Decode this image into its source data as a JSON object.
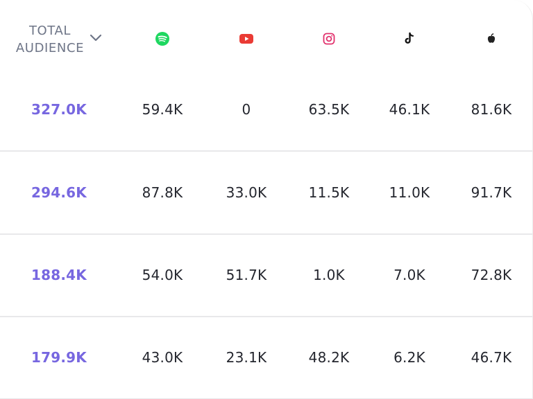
{
  "header": {
    "sort_label": "TOTAL\nAUDIENCE",
    "platforms": [
      {
        "icon": "spotify-icon",
        "color": "#1ed760"
      },
      {
        "icon": "youtube-icon",
        "color": "#ea3b35"
      },
      {
        "icon": "instagram-icon",
        "color": "#e1306c"
      },
      {
        "icon": "tiktok-icon",
        "color": "#111111"
      },
      {
        "icon": "apple-music-icon",
        "color": "#222222"
      }
    ]
  },
  "colors": {
    "total_value": "#7767e0",
    "cell_text": "#24262e",
    "header_text": "#6e7587",
    "row_divider": "#e8e8ea"
  },
  "rows": [
    {
      "total": "327.0K",
      "spotify": "59.4K",
      "youtube": "0",
      "instagram": "63.5K",
      "tiktok": "46.1K",
      "apple": "81.6K"
    },
    {
      "total": "294.6K",
      "spotify": "87.8K",
      "youtube": "33.0K",
      "instagram": "11.5K",
      "tiktok": "11.0K",
      "apple": "91.7K"
    },
    {
      "total": "188.4K",
      "spotify": "54.0K",
      "youtube": "51.7K",
      "instagram": "1.0K",
      "tiktok": "7.0K",
      "apple": "72.8K"
    },
    {
      "total": "179.9K",
      "spotify": "43.0K",
      "youtube": "23.1K",
      "instagram": "48.2K",
      "tiktok": "6.2K",
      "apple": "46.7K"
    }
  ]
}
